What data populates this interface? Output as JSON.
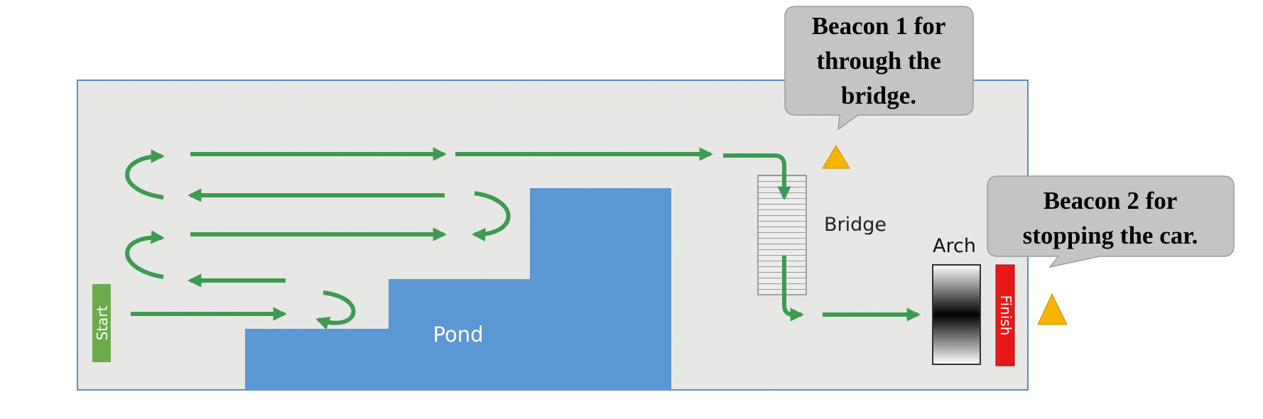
{
  "course": {
    "start_label": "Start",
    "finish_label": "Finish",
    "pond_label": "Pond",
    "bridge_label": "Bridge",
    "arch_label": "Arch"
  },
  "callouts": {
    "beacon1": [
      "Beacon 1 for",
      "through the",
      "bridge."
    ],
    "beacon2": [
      "Beacon 2 for",
      "stopping the car."
    ]
  },
  "colors": {
    "ground": "#e9e9e7",
    "arena_border": "#5b8fbd",
    "path": "#3f9a52",
    "pond": "#5b97d2",
    "start": "#6aac4b",
    "finish": "#e81818",
    "beacon": "#f6b400",
    "callout": "#c3c3c3"
  },
  "icons": {
    "beacon": "warning-triangle-icon",
    "path": "arrow-icon"
  }
}
